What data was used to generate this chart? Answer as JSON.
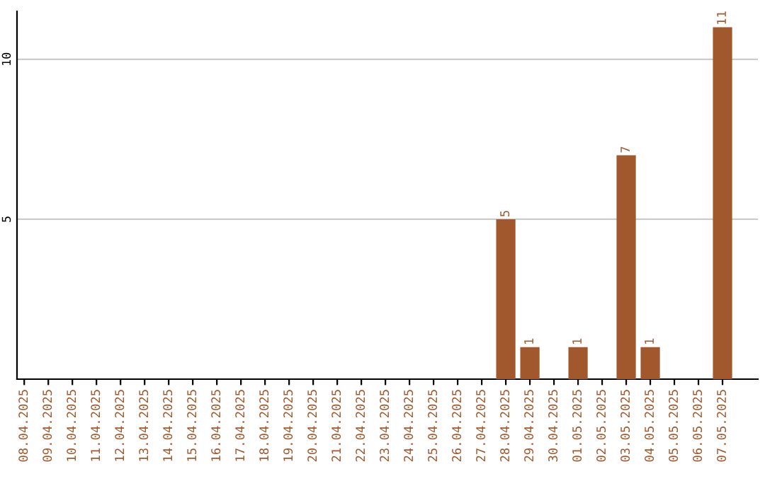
{
  "chart_data": {
    "type": "bar",
    "categories": [
      "08.04.2025",
      "09.04.2025",
      "10.04.2025",
      "11.04.2025",
      "12.04.2025",
      "13.04.2025",
      "14.04.2025",
      "15.04.2025",
      "16.04.2025",
      "17.04.2025",
      "18.04.2025",
      "19.04.2025",
      "20.04.2025",
      "21.04.2025",
      "22.04.2025",
      "23.04.2025",
      "24.04.2025",
      "25.04.2025",
      "26.04.2025",
      "27.04.2025",
      "28.04.2025",
      "29.04.2025",
      "30.04.2025",
      "01.05.2025",
      "02.05.2025",
      "03.05.2025",
      "04.05.2025",
      "05.05.2025",
      "06.05.2025",
      "07.05.2025"
    ],
    "values": [
      0,
      0,
      0,
      0,
      0,
      0,
      0,
      0,
      0,
      0,
      0,
      0,
      0,
      0,
      0,
      0,
      0,
      0,
      0,
      0,
      5,
      1,
      0,
      1,
      0,
      7,
      1,
      0,
      0,
      11
    ],
    "value_labels": [
      null,
      null,
      null,
      null,
      null,
      null,
      null,
      null,
      null,
      null,
      null,
      null,
      null,
      null,
      null,
      null,
      null,
      null,
      null,
      null,
      "5",
      "1",
      null,
      "1",
      null,
      "7",
      "1",
      null,
      null,
      "11"
    ],
    "color": "#a0582c",
    "ylim": [
      0,
      11.5
    ],
    "yticks": [
      5,
      10
    ],
    "grid": "y"
  }
}
